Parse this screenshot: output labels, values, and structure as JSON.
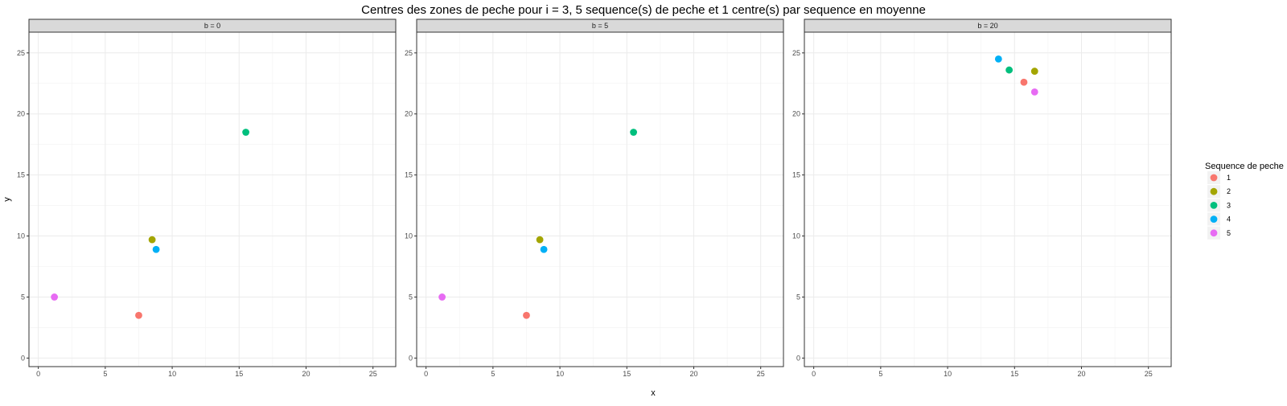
{
  "chart_data": {
    "type": "scatter",
    "title": "Centres des zones de peche pour i = 3, 5 sequence(s) de peche et 1 centre(s) par sequence en moyenne",
    "xlabel": "x",
    "ylabel": "y",
    "xlim": [
      -0.7,
      26.7
    ],
    "ylim": [
      -0.7,
      26.7
    ],
    "x_ticks": [
      0,
      5,
      10,
      15,
      20,
      25
    ],
    "y_ticks": [
      0,
      5,
      10,
      15,
      20,
      25
    ],
    "x_tick_labels": [
      "0",
      "5",
      "10",
      "15",
      "20",
      "25"
    ],
    "y_tick_labels": [
      "0",
      "5",
      "10",
      "15",
      "20",
      "25"
    ],
    "grid": true,
    "legend": {
      "title": "Sequence de peche",
      "position": "right",
      "entries": [
        {
          "label": "1",
          "color": "#F8766D"
        },
        {
          "label": "2",
          "color": "#A3A500"
        },
        {
          "label": "3",
          "color": "#00BF7D"
        },
        {
          "label": "4",
          "color": "#00B0F6"
        },
        {
          "label": "5",
          "color": "#E76BF3"
        }
      ]
    },
    "facets": [
      {
        "label": "b = 0",
        "points": [
          {
            "series": "1",
            "x": 7.5,
            "y": 3.5
          },
          {
            "series": "2",
            "x": 8.5,
            "y": 9.7
          },
          {
            "series": "3",
            "x": 15.5,
            "y": 18.5
          },
          {
            "series": "4",
            "x": 8.8,
            "y": 8.9
          },
          {
            "series": "5",
            "x": 1.2,
            "y": 5.0
          }
        ]
      },
      {
        "label": "b = 5",
        "points": [
          {
            "series": "1",
            "x": 7.5,
            "y": 3.5
          },
          {
            "series": "2",
            "x": 8.5,
            "y": 9.7
          },
          {
            "series": "3",
            "x": 15.5,
            "y": 18.5
          },
          {
            "series": "4",
            "x": 8.8,
            "y": 8.9
          },
          {
            "series": "5",
            "x": 1.2,
            "y": 5.0
          }
        ]
      },
      {
        "label": "b = 20",
        "points": [
          {
            "series": "1",
            "x": 15.7,
            "y": 22.6
          },
          {
            "series": "2",
            "x": 16.5,
            "y": 23.5
          },
          {
            "series": "3",
            "x": 14.6,
            "y": 23.6
          },
          {
            "series": "4",
            "x": 13.8,
            "y": 24.5
          },
          {
            "series": "5",
            "x": 16.5,
            "y": 21.8
          }
        ]
      }
    ]
  }
}
